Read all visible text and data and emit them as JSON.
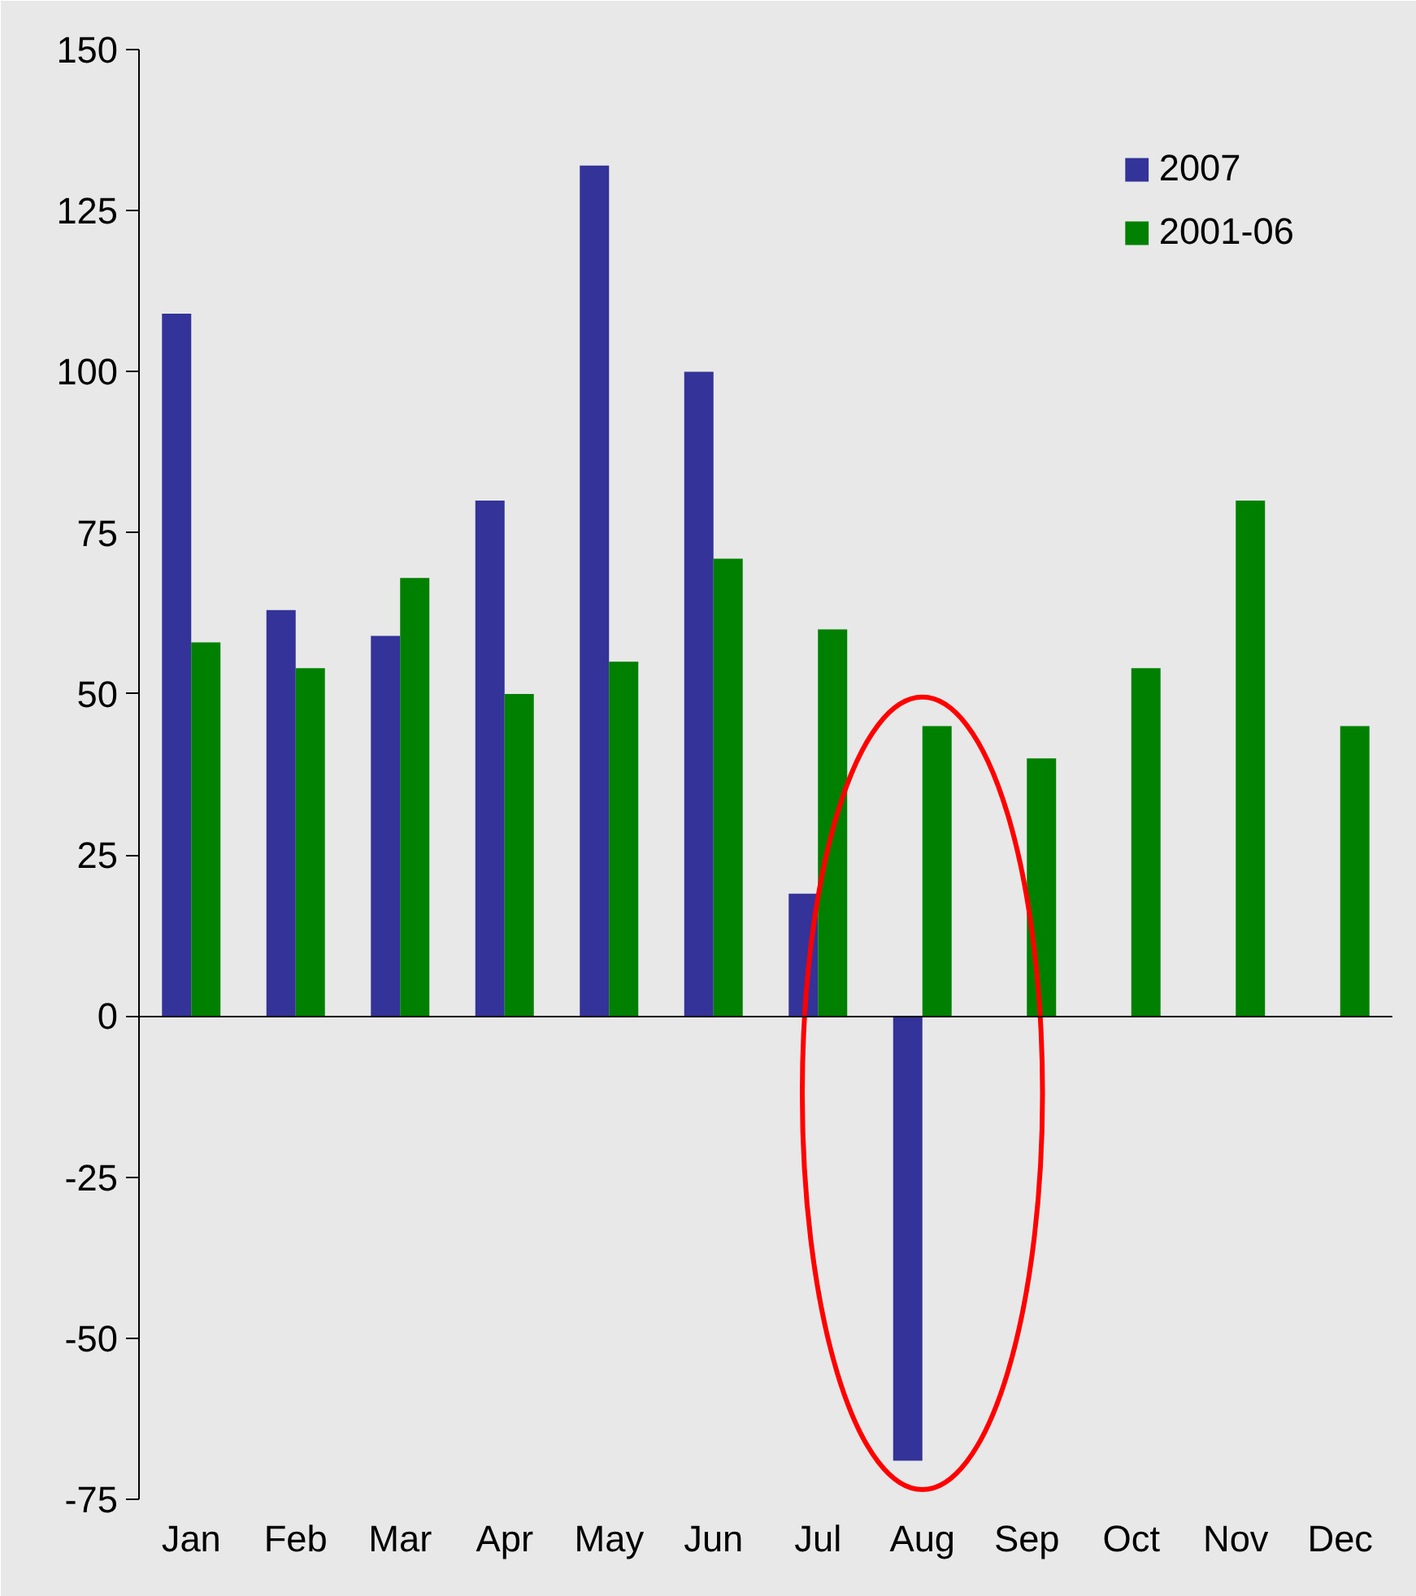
{
  "chart_data": {
    "type": "bar",
    "categories": [
      "Jan",
      "Feb",
      "Mar",
      "Apr",
      "May",
      "Jun",
      "Jul",
      "Aug",
      "Sep",
      "Oct",
      "Nov",
      "Dec"
    ],
    "series": [
      {
        "name": "2007",
        "color": "#333399",
        "values": [
          109,
          63,
          59,
          80,
          132,
          100,
          19,
          -69,
          null,
          null,
          null,
          null
        ]
      },
      {
        "name": "2001-06",
        "color": "#008000",
        "values": [
          58,
          54,
          68,
          50,
          55,
          71,
          60,
          45,
          40,
          54,
          80,
          45
        ]
      }
    ],
    "ylim": [
      -75,
      150
    ],
    "yticks": [
      -75,
      -50,
      -25,
      0,
      25,
      50,
      75,
      100,
      125,
      150
    ],
    "legend": "top right"
  }
}
